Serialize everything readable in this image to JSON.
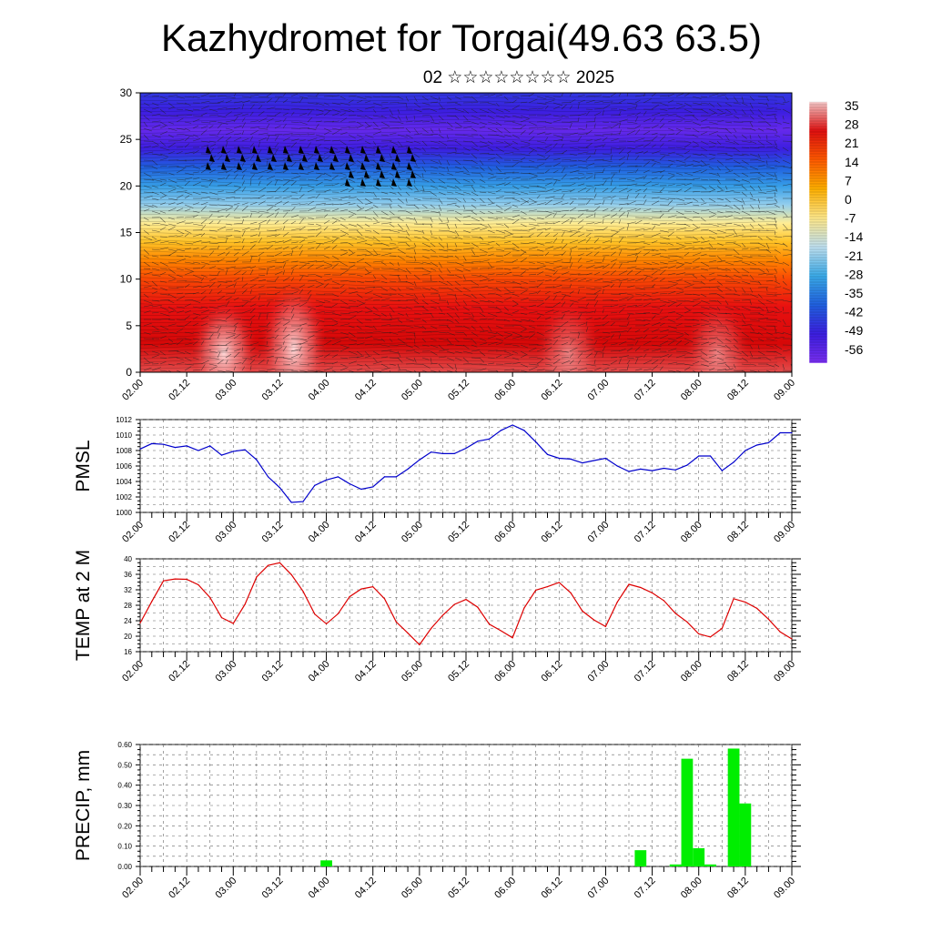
{
  "title": "Kazhydromet for Torgai(49.63 63.5)",
  "subtitle": "02 ☆☆☆☆☆☆☆☆ 2025",
  "time_ticks": [
    "02.00",
    "02.12",
    "03.00",
    "03.12",
    "04.00",
    "04.12",
    "05.00",
    "05.12",
    "06.00",
    "06.12",
    "07.00",
    "07.12",
    "08.00",
    "08.12",
    "09.00"
  ],
  "colorbar": {
    "labels": [
      "35",
      "28",
      "21",
      "14",
      "7",
      "0",
      "-7",
      "-14",
      "-21",
      "-28",
      "-35",
      "-42",
      "-49",
      "-56"
    ],
    "colors": [
      "#f4c7c7",
      "#e01010",
      "#ff5a00",
      "#ffb000",
      "#ffe88a",
      "#bfe0f0",
      "#3aaae8",
      "#2060e0",
      "#3c1ee0",
      "#7a2ff0"
    ]
  },
  "chart_data": [
    {
      "type": "heatmap",
      "name": "cross-section",
      "ylabel": "",
      "ylim": [
        0,
        30
      ],
      "yticks": [
        "0",
        "5",
        "10",
        "15",
        "20",
        "25",
        "30"
      ],
      "x_ticks": [
        "02.00",
        "02.12",
        "03.00",
        "03.12",
        "04.00",
        "04.12",
        "05.00",
        "05.12",
        "06.00",
        "06.12",
        "07.00",
        "07.12",
        "08.00",
        "08.12",
        "09.00"
      ],
      "value_range": [
        -60,
        36
      ],
      "bands": [
        {
          "level": 0,
          "value": 32
        },
        {
          "level": 3,
          "value": 30
        },
        {
          "level": 7,
          "value": 24
        },
        {
          "level": 10,
          "value": 18
        },
        {
          "level": 12,
          "value": 10
        },
        {
          "level": 14,
          "value": 0
        },
        {
          "level": 16,
          "value": -10
        },
        {
          "level": 18,
          "value": -24
        },
        {
          "level": 20,
          "value": -34
        },
        {
          "level": 22,
          "value": -44
        },
        {
          "level": 24,
          "value": -54
        },
        {
          "level": 26,
          "value": -58
        },
        {
          "level": 28,
          "value": -54
        },
        {
          "level": 30,
          "value": -50
        }
      ],
      "hot_spots": [
        {
          "time": 0.9,
          "level": 2,
          "value": 36
        },
        {
          "time": 1.65,
          "level": 3,
          "value": 38
        },
        {
          "time": 4.6,
          "level": 1,
          "value": 34
        },
        {
          "time": 6.2,
          "level": 1,
          "value": 33
        }
      ]
    },
    {
      "type": "line",
      "name": "PMSL",
      "ylabel": "PMSL",
      "ylim": [
        1000,
        1012
      ],
      "yticks": [
        "1000",
        "1002",
        "1004",
        "1006",
        "1008",
        "1010",
        "1012"
      ],
      "x_ticks": [
        "02.00",
        "02.12",
        "03.00",
        "03.12",
        "04.00",
        "04.12",
        "05.00",
        "05.12",
        "06.00",
        "06.12",
        "07.00",
        "07.12",
        "08.00",
        "08.12",
        "09.00"
      ],
      "color": "#0000cc",
      "x": [
        0,
        0.125,
        0.25,
        0.375,
        0.5,
        0.625,
        0.75,
        0.875,
        1,
        1.125,
        1.25,
        1.375,
        1.5,
        1.625,
        1.75,
        1.875,
        2,
        2.125,
        2.25,
        2.375,
        2.5,
        2.625,
        2.75,
        2.875,
        3,
        3.125,
        3.25,
        3.375,
        3.5,
        3.625,
        3.75,
        3.875,
        4,
        4.125,
        4.25,
        4.375,
        4.5,
        4.625,
        4.75,
        4.875,
        5,
        5.125,
        5.25,
        5.375,
        5.5,
        5.625,
        5.75,
        5.875,
        6,
        6.125,
        6.25,
        6.375,
        6.5,
        6.625,
        6.75,
        6.875,
        7
      ],
      "values": [
        1008.2,
        1008.9,
        1008.8,
        1008.4,
        1008.6,
        1008.0,
        1008.6,
        1007.4,
        1007.9,
        1008.1,
        1006.8,
        1004.6,
        1003.2,
        1001.3,
        1001.4,
        1003.5,
        1004.2,
        1004.6,
        1003.7,
        1003.0,
        1003.3,
        1004.6,
        1004.6,
        1005.6,
        1006.8,
        1007.8,
        1007.6,
        1007.6,
        1008.3,
        1009.2,
        1009.5,
        1010.6,
        1011.3,
        1010.6,
        1009.1,
        1007.5,
        1007.0,
        1006.9,
        1006.4,
        1006.7,
        1007.0,
        1006.0,
        1005.3,
        1005.6,
        1005.4,
        1005.7,
        1005.5,
        1006.1,
        1007.3,
        1007.3,
        1005.4,
        1006.5,
        1008.0,
        1008.7,
        1009.0,
        1010.3,
        1010.3
      ]
    },
    {
      "type": "line",
      "name": "TEMP",
      "ylabel": "TEMP at 2 M",
      "ylim": [
        16,
        40
      ],
      "yticks": [
        "16",
        "20",
        "24",
        "28",
        "32",
        "36",
        "40"
      ],
      "x_ticks": [
        "02.00",
        "02.12",
        "03.00",
        "03.12",
        "04.00",
        "04.12",
        "05.00",
        "05.12",
        "06.00",
        "06.12",
        "07.00",
        "07.12",
        "08.00",
        "08.12",
        "09.00"
      ],
      "color": "#dd0000",
      "x": [
        0,
        0.125,
        0.25,
        0.375,
        0.5,
        0.625,
        0.75,
        0.875,
        1,
        1.125,
        1.25,
        1.375,
        1.5,
        1.625,
        1.75,
        1.875,
        2,
        2.125,
        2.25,
        2.375,
        2.5,
        2.625,
        2.75,
        2.875,
        3,
        3.125,
        3.25,
        3.375,
        3.5,
        3.625,
        3.75,
        3.875,
        4,
        4.125,
        4.25,
        4.375,
        4.5,
        4.625,
        4.75,
        4.875,
        5,
        5.125,
        5.25,
        5.375,
        5.5,
        5.625,
        5.75,
        5.875,
        6,
        6.125,
        6.25,
        6.375,
        6.5,
        6.625,
        6.75,
        6.875,
        7
      ],
      "values": [
        23.4,
        29.0,
        34.3,
        34.8,
        34.7,
        33.3,
        30.0,
        24.8,
        23.3,
        28.2,
        35.3,
        38.3,
        39.0,
        35.9,
        31.6,
        25.7,
        23.2,
        25.8,
        30.2,
        32.2,
        32.8,
        29.7,
        23.7,
        20.8,
        17.8,
        22.0,
        25.4,
        28.2,
        29.5,
        27.5,
        23.1,
        21.4,
        19.6,
        27.3,
        31.9,
        32.8,
        33.9,
        31.2,
        26.5,
        24.2,
        22.5,
        28.8,
        33.4,
        32.6,
        31.2,
        29.2,
        25.9,
        23.7,
        20.6,
        19.8,
        22.0,
        29.7,
        28.8,
        27.2,
        24.4,
        21.1,
        19.3
      ]
    },
    {
      "type": "bar",
      "name": "PRECIP",
      "ylabel": "PRECIP, mm",
      "ylim": [
        0,
        0.6
      ],
      "yticks": [
        "0.00",
        "0.10",
        "0.20",
        "0.30",
        "0.40",
        "0.50",
        "0.60"
      ],
      "x_ticks": [
        "02.00",
        "02.12",
        "03.00",
        "03.12",
        "04.00",
        "04.12",
        "05.00",
        "05.12",
        "06.00",
        "06.12",
        "07.00",
        "07.12",
        "08.00",
        "08.12",
        "09.00"
      ],
      "color": "#00ee00",
      "x": [
        2.0,
        5.375,
        5.75,
        5.875,
        6.0,
        6.125,
        6.375,
        6.5
      ],
      "values": [
        0.03,
        0.08,
        0.01,
        0.53,
        0.09,
        0.01,
        0.58,
        0.31
      ]
    }
  ]
}
